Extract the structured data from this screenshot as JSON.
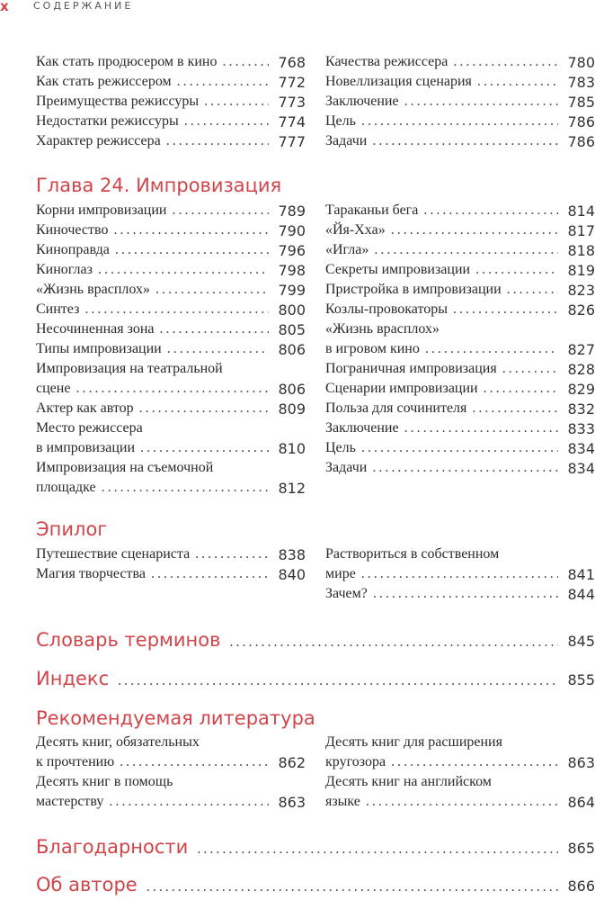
{
  "header": {
    "mark": "x",
    "title": "СОДЕРЖАНИЕ"
  },
  "sections": [
    {
      "heading": "",
      "left": [
        {
          "lines": [
            "Как стать продюсером в кино"
          ],
          "page": "768"
        },
        {
          "lines": [
            "Как стать режиссером"
          ],
          "page": "772"
        },
        {
          "lines": [
            "Преимущества режиссуры"
          ],
          "page": "773"
        },
        {
          "lines": [
            "Недостатки режиссуры"
          ],
          "page": "774"
        },
        {
          "lines": [
            "Характер режиссера"
          ],
          "page": "777"
        }
      ],
      "right": [
        {
          "lines": [
            "Качества режиссера"
          ],
          "page": "780"
        },
        {
          "lines": [
            "Новеллизация сценария"
          ],
          "page": "783"
        },
        {
          "lines": [
            "Заключение"
          ],
          "page": "785"
        },
        {
          "lines": [
            "Цель"
          ],
          "page": "786"
        },
        {
          "lines": [
            "Задачи"
          ],
          "page": "786"
        }
      ]
    },
    {
      "heading": "Глава 24. Импровизация",
      "left": [
        {
          "lines": [
            "Корни импровизации"
          ],
          "page": "789"
        },
        {
          "lines": [
            "Киночество"
          ],
          "page": "790"
        },
        {
          "lines": [
            "Киноправда"
          ],
          "page": "796"
        },
        {
          "lines": [
            "Киноглаз"
          ],
          "page": "798"
        },
        {
          "lines": [
            "«Жизнь врасплох»"
          ],
          "page": "799"
        },
        {
          "lines": [
            "Синтез"
          ],
          "page": "800"
        },
        {
          "lines": [
            "Несочиненная зона"
          ],
          "page": "805"
        },
        {
          "lines": [
            "Типы импровизации"
          ],
          "page": "806"
        },
        {
          "lines": [
            "Импровизация на театральной",
            "сцене"
          ],
          "page": "806"
        },
        {
          "lines": [
            "Актер как автор"
          ],
          "page": "809"
        },
        {
          "lines": [
            "Место режиссера",
            "в импровизации"
          ],
          "page": "810"
        },
        {
          "lines": [
            "Импровизация на съемочной",
            "площадке"
          ],
          "page": "812"
        }
      ],
      "right": [
        {
          "lines": [
            "Тараканьи бега"
          ],
          "page": "814"
        },
        {
          "lines": [
            "«Йя-Хха»"
          ],
          "page": "817"
        },
        {
          "lines": [
            "«Игла»"
          ],
          "page": "818"
        },
        {
          "lines": [
            "Секреты импровизации"
          ],
          "page": "819"
        },
        {
          "lines": [
            "Пристройка в импровизации"
          ],
          "page": "823"
        },
        {
          "lines": [
            "Козлы-провокаторы"
          ],
          "page": "826"
        },
        {
          "lines": [
            "«Жизнь врасплох»",
            "в игровом кино"
          ],
          "page": "827"
        },
        {
          "lines": [
            "Пограничная импровизация"
          ],
          "page": "828"
        },
        {
          "lines": [
            "Сценарии импровизации"
          ],
          "page": "829"
        },
        {
          "lines": [
            "Польза для сочинителя"
          ],
          "page": "832"
        },
        {
          "lines": [
            "Заключение"
          ],
          "page": "833"
        },
        {
          "lines": [
            "Цель"
          ],
          "page": "834"
        },
        {
          "lines": [
            "Задачи"
          ],
          "page": "834"
        }
      ]
    },
    {
      "heading": "Эпилог",
      "left": [
        {
          "lines": [
            "Путешествие сценариста"
          ],
          "page": "838"
        },
        {
          "lines": [
            "Магия творчества"
          ],
          "page": "840"
        }
      ],
      "right": [
        {
          "lines": [
            "Раствориться в собственном",
            "мире"
          ],
          "page": "841"
        },
        {
          "lines": [
            "Зачем?"
          ],
          "page": "844"
        }
      ]
    },
    {
      "heading": "Рекомендуемая литература",
      "left": [
        {
          "lines": [
            "Десять книг, обязательных",
            "к прочтению"
          ],
          "page": "862"
        },
        {
          "lines": [
            "Десять книг в помощь",
            "мастерству"
          ],
          "page": "863"
        }
      ],
      "right": [
        {
          "lines": [
            "Десять книг для расширения",
            "кругозора"
          ],
          "page": "863"
        },
        {
          "lines": [
            "Десять книг на английском",
            "языке"
          ],
          "page": "864"
        }
      ]
    }
  ],
  "big_entries": [
    {
      "title": "Словарь терминов",
      "page": "845"
    },
    {
      "title": "Индекс",
      "page": "855"
    },
    {
      "title": "Благодарности",
      "page": "865"
    },
    {
      "title": "Об авторе",
      "page": "866"
    }
  ]
}
